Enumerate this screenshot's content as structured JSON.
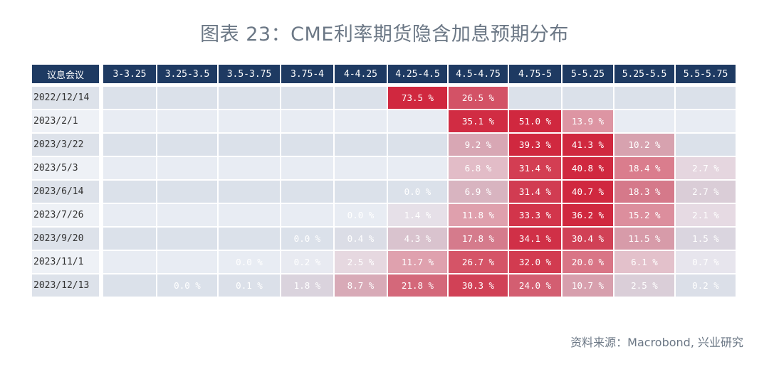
{
  "title": "图表 23：CME利率期货隐含加息预期分布",
  "source": "资料来源：Macrobond, 兴业研究",
  "chart_data": {
    "type": "heatmap",
    "title": "图表 23：CME利率期货隐含加息预期分布",
    "corner_label": "议息会议",
    "columns": [
      "3-3.25",
      "3.25-3.5",
      "3.5-3.75",
      "3.75-4",
      "4-4.25",
      "4.25-4.5",
      "4.5-4.75",
      "4.75-5",
      "5-5.25",
      "5.25-5.5",
      "5.5-5.75"
    ],
    "rows": [
      "2022/12/14",
      "2023/2/1",
      "2023/3/22",
      "2023/5/3",
      "2023/6/14",
      "2023/7/26",
      "2023/9/20",
      "2023/11/1",
      "2023/12/13"
    ],
    "unit": "%",
    "values": [
      [
        null,
        null,
        null,
        null,
        null,
        73.5,
        26.5,
        null,
        null,
        null,
        null
      ],
      [
        null,
        null,
        null,
        null,
        null,
        null,
        35.1,
        51.0,
        13.9,
        null,
        null
      ],
      [
        null,
        null,
        null,
        null,
        null,
        null,
        9.2,
        39.3,
        41.3,
        10.2,
        null
      ],
      [
        null,
        null,
        null,
        null,
        null,
        null,
        6.8,
        31.4,
        40.8,
        18.4,
        2.7
      ],
      [
        null,
        null,
        null,
        null,
        null,
        0.0,
        6.9,
        31.4,
        40.7,
        18.3,
        2.7
      ],
      [
        null,
        null,
        null,
        null,
        0.0,
        1.4,
        11.8,
        33.3,
        36.2,
        15.2,
        2.1
      ],
      [
        null,
        null,
        null,
        0.0,
        0.4,
        4.3,
        17.8,
        34.1,
        30.4,
        11.5,
        1.5
      ],
      [
        null,
        null,
        0.0,
        0.2,
        2.5,
        11.7,
        26.7,
        32.0,
        20.0,
        6.1,
        0.7
      ],
      [
        null,
        0.0,
        0.1,
        1.8,
        8.7,
        21.8,
        30.3,
        24.0,
        10.7,
        2.5,
        0.2
      ]
    ],
    "colors": {
      "header": "#1e3a62",
      "low": "#dde3ec",
      "high": "#d0283f"
    }
  }
}
